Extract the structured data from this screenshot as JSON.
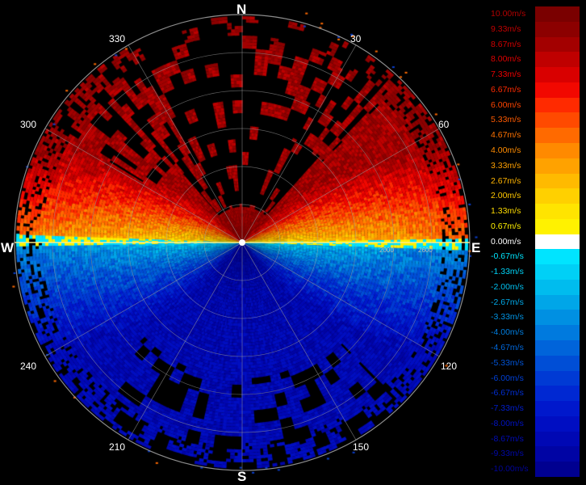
{
  "compass": {
    "north": "N",
    "east": "E",
    "south": "S",
    "west": "W"
  },
  "azimuth_labels": [
    "30",
    "60",
    "120",
    "150",
    "210",
    "240",
    "300",
    "330"
  ],
  "range_labels": [
    "2000",
    "2600"
  ],
  "colors": {
    "background": "#000000",
    "grid": "#9a9a9a",
    "ew_line": "#ffeb8a",
    "center_marker": "#ffffff"
  },
  "legend": {
    "entries": [
      {
        "label": "10.00m/s",
        "color": "#7a0000",
        "text_color": "#b30000"
      },
      {
        "label": "9.33m/s",
        "color": "#8c0000",
        "text_color": "#c20000"
      },
      {
        "label": "8.67m/s",
        "color": "#a30000",
        "text_color": "#d10000"
      },
      {
        "label": "8.00m/s",
        "color": "#bf0000",
        "text_color": "#e00000"
      },
      {
        "label": "7.33m/s",
        "color": "#d90000",
        "text_color": "#f00000"
      },
      {
        "label": "6.67m/s",
        "color": "#f20800",
        "text_color": "#ff2a00"
      },
      {
        "label": "6.00m/s",
        "color": "#ff2a00",
        "text_color": "#ff4400"
      },
      {
        "label": "5.33m/s",
        "color": "#ff4a00",
        "text_color": "#ff5a00"
      },
      {
        "label": "4.67m/s",
        "color": "#ff6a00",
        "text_color": "#ff7200"
      },
      {
        "label": "4.00m/s",
        "color": "#ff8a00",
        "text_color": "#ff8c00"
      },
      {
        "label": "3.33m/s",
        "color": "#ffa200",
        "text_color": "#ffa000"
      },
      {
        "label": "2.67m/s",
        "color": "#ffba00",
        "text_color": "#ffb400"
      },
      {
        "label": "2.00m/s",
        "color": "#ffd000",
        "text_color": "#ffc800"
      },
      {
        "label": "1.33m/s",
        "color": "#ffe400",
        "text_color": "#ffdc00"
      },
      {
        "label": "0.67m/s",
        "color": "#fff200",
        "text_color": "#fff000"
      },
      {
        "label": "0.00m/s",
        "color": "#ffffff",
        "text_color": "#ffffff"
      },
      {
        "label": "-0.67m/s",
        "color": "#00e4ff",
        "text_color": "#00e6ff"
      },
      {
        "label": "-1.33m/s",
        "color": "#00d0f6",
        "text_color": "#00d4f8"
      },
      {
        "label": "-2.00m/s",
        "color": "#00bcee",
        "text_color": "#00c0f0"
      },
      {
        "label": "-2.67m/s",
        "color": "#00a6e8",
        "text_color": "#00aaea"
      },
      {
        "label": "-3.33m/s",
        "color": "#0090e2",
        "text_color": "#0094e4"
      },
      {
        "label": "-4.00m/s",
        "color": "#007ade",
        "text_color": "#007ee0"
      },
      {
        "label": "-4.67m/s",
        "color": "#0064da",
        "text_color": "#0068dc"
      },
      {
        "label": "-5.33m/s",
        "color": "#004ed6",
        "text_color": "#0054d8"
      },
      {
        "label": "-6.00m/s",
        "color": "#003ad4",
        "text_color": "#0040d6"
      },
      {
        "label": "-6.67m/s",
        "color": "#0028d2",
        "text_color": "#002ed4"
      },
      {
        "label": "-7.33m/s",
        "color": "#0018cc",
        "text_color": "#001ed0"
      },
      {
        "label": "-8.00m/s",
        "color": "#000ec2",
        "text_color": "#0012c4"
      },
      {
        "label": "-8.67m/s",
        "color": "#0008b4",
        "text_color": "#000cb8"
      },
      {
        "label": "-9.33m/s",
        "color": "#0004a4",
        "text_color": "#0008a8"
      },
      {
        "label": "-10.00m/s",
        "color": "#000090",
        "text_color": "#000496"
      }
    ]
  }
}
